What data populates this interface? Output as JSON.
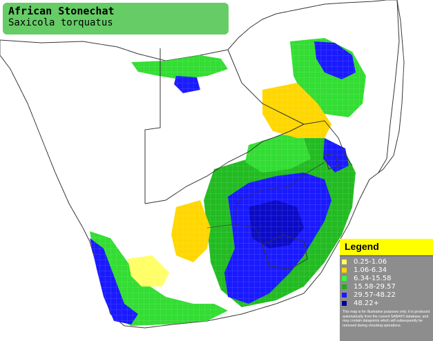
{
  "title": {
    "common_name": "African Stonechat",
    "scientific_name": "Saxicola torquatus"
  },
  "legend": {
    "title": "Legend",
    "items": [
      {
        "label": "0.25-1.06",
        "color": "#ffff66"
      },
      {
        "label": "1.06-6.34",
        "color": "#ffd700"
      },
      {
        "label": "6.34-15.58",
        "color": "#33ff33"
      },
      {
        "label": "15.58-29.57",
        "color": "#22aa22"
      },
      {
        "label": "29.57-48.22",
        "color": "#1a1aff"
      },
      {
        "label": "48.22+",
        "color": "#000099"
      }
    ],
    "disclaimer": "This map is for illustrative purposes only; it is produced automatically from the current SABAP2 database, and may contain datapoints which will subsequently be removed during checking operations."
  },
  "colors": {
    "panel_green": "#66cc66",
    "legend_header": "#ffff00",
    "legend_bg": "#8d8d8d",
    "border_lines": "#333333"
  }
}
